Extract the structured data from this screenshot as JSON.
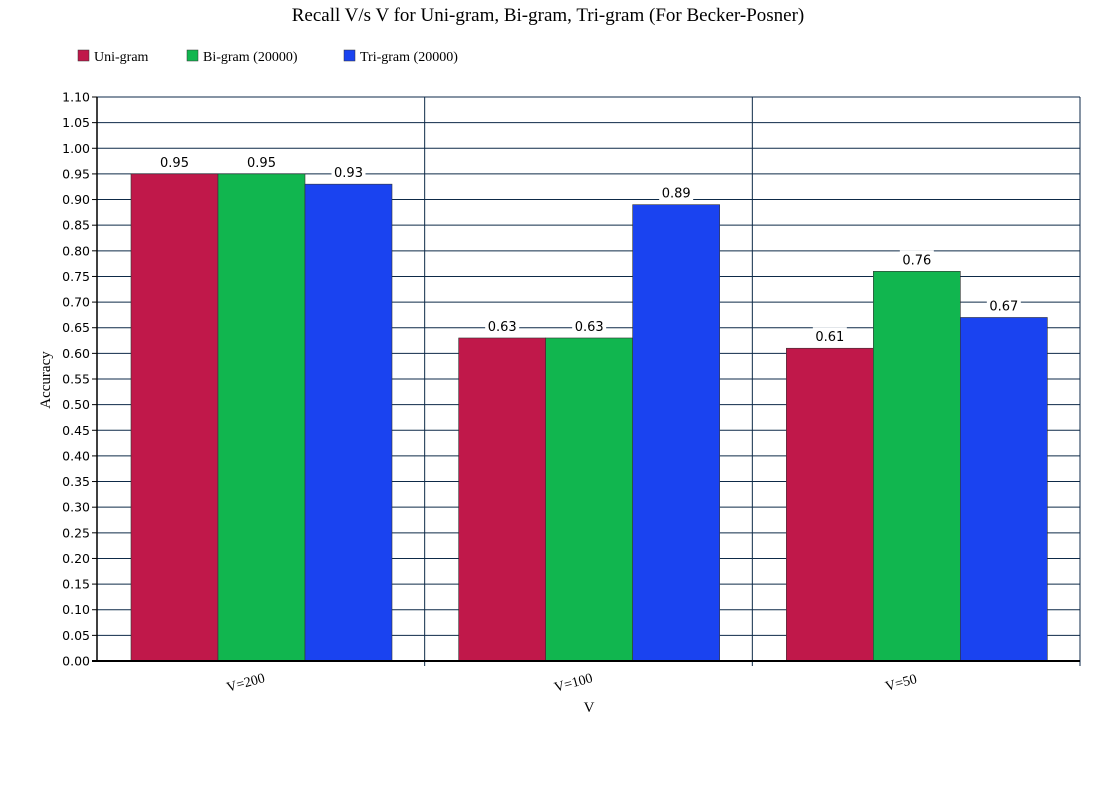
{
  "chart_data": {
    "type": "bar",
    "title": "Recall V/s V for Uni-gram, Bi-gram, Tri-gram (For Becker-Posner)",
    "xlabel": "V",
    "ylabel": "Accuracy",
    "categories": [
      "V=200",
      "V=100",
      "V=50"
    ],
    "series": [
      {
        "name": "Uni-gram",
        "color": "#c0184a",
        "values": [
          0.95,
          0.63,
          0.61
        ]
      },
      {
        "name": "Bi-gram (20000)",
        "color": "#11b64f",
        "values": [
          0.95,
          0.63,
          0.76
        ]
      },
      {
        "name": "Tri-gram (20000)",
        "color": "#1a43f0",
        "values": [
          0.93,
          0.89,
          0.67
        ]
      }
    ],
    "value_labels": [
      [
        "0.95",
        "0.63",
        "0.61"
      ],
      [
        "0.95",
        "0.63",
        "0.76"
      ],
      [
        "0.93",
        "0.89",
        "0.67"
      ]
    ],
    "ylim": [
      0,
      1.1
    ],
    "y_ticks": [
      "0.00",
      "0.05",
      "0.10",
      "0.15",
      "0.20",
      "0.25",
      "0.30",
      "0.35",
      "0.40",
      "0.45",
      "0.50",
      "0.55",
      "0.60",
      "0.65",
      "0.70",
      "0.75",
      "0.80",
      "0.85",
      "0.90",
      "0.95",
      "1.00",
      "1.05",
      "1.10"
    ],
    "grid": true,
    "legend_position": "top-left",
    "colors": {
      "grid": "#0e2a48",
      "axis": "#000000"
    }
  }
}
